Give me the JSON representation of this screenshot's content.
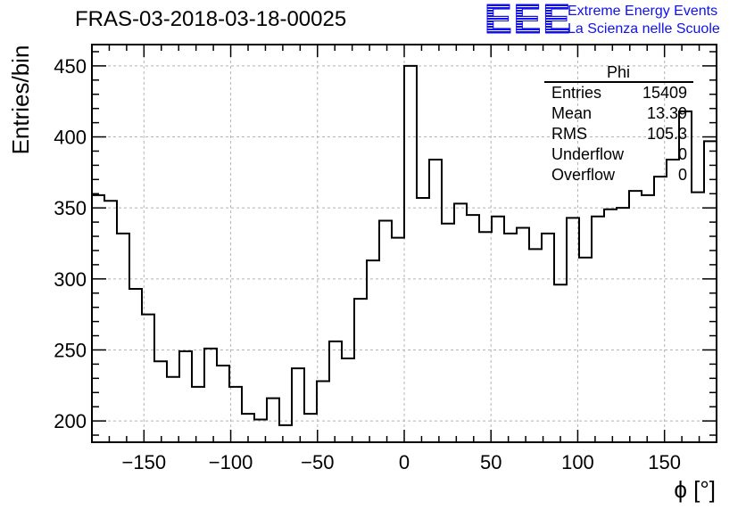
{
  "header": {
    "title": "FRAS-03-2018-03-18-00025"
  },
  "logo": {
    "mark": "EEE",
    "line1": "Extreme Energy Events",
    "line2": "La Scienza nelle Scuole",
    "color": "#1010ee"
  },
  "stats_box": {
    "title": "Phi",
    "rows": [
      {
        "label": "Entries",
        "value": "15409"
      },
      {
        "label": "Mean",
        "value": "13.39"
      },
      {
        "label": "RMS",
        "value": "105.3"
      },
      {
        "label": "Underflow",
        "value": "0"
      },
      {
        "label": "Overflow",
        "value": "0"
      }
    ]
  },
  "chart_data": {
    "type": "histogram",
    "xlabel": "ϕ [°]",
    "ylabel": "Entries/bin",
    "xlim": [
      -180,
      180
    ],
    "ylim": [
      185,
      465
    ],
    "grid": true,
    "bin_width": 7.2,
    "x_ticks": [
      -150,
      -100,
      -50,
      0,
      50,
      100,
      150
    ],
    "y_ticks": [
      200,
      250,
      300,
      350,
      400,
      450
    ],
    "values": [
      359,
      355,
      332,
      293,
      275,
      242,
      231,
      249,
      224,
      251,
      239,
      224,
      205,
      201,
      216,
      197,
      237,
      205,
      228,
      256,
      244,
      286,
      313,
      341,
      329,
      450,
      357,
      384,
      339,
      353,
      345,
      333,
      344,
      332,
      336,
      321,
      332,
      296,
      343,
      315,
      344,
      349,
      350,
      362,
      359,
      372,
      384,
      418,
      361,
      397
    ]
  }
}
